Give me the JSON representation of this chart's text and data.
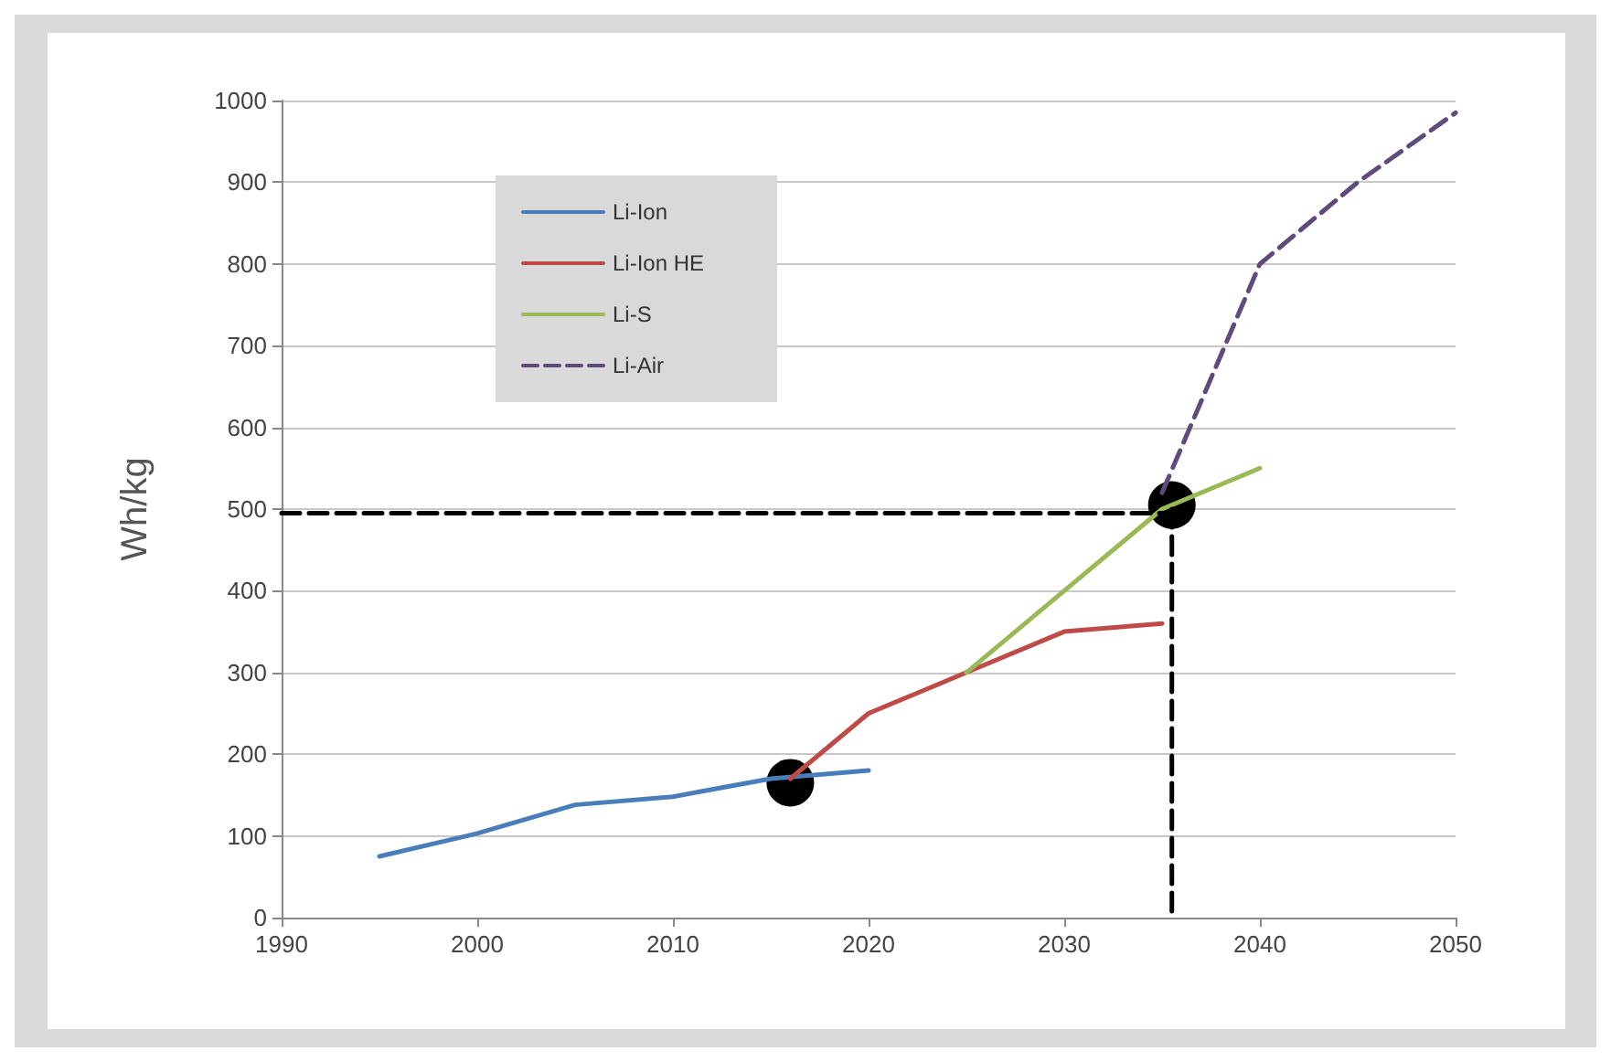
{
  "chart_data": {
    "type": "line",
    "ylabel": "Wh/kg",
    "xlim": [
      1990,
      2050
    ],
    "ylim": [
      0,
      1000
    ],
    "xticks": [
      1990,
      2000,
      2010,
      2020,
      2030,
      2040,
      2050
    ],
    "yticks": [
      0,
      100,
      200,
      300,
      400,
      500,
      600,
      700,
      800,
      900,
      1000
    ],
    "grid": "y",
    "legend": "top left",
    "marker": "none",
    "series": [
      {
        "name": "Li-Ion",
        "color": "#4a7ebb",
        "x": [
          1995,
          2000,
          2005,
          2010,
          2015,
          2020
        ],
        "values": [
          75,
          103,
          138,
          148,
          170,
          180
        ]
      },
      {
        "name": "Li-Ion HE",
        "color": "#be4b48",
        "x": [
          2016,
          2020,
          2025,
          2030,
          2035
        ],
        "values": [
          170,
          250,
          300,
          350,
          360
        ]
      },
      {
        "name": "Li-S",
        "color": "#98b954",
        "x": [
          2025,
          2030,
          2035,
          2040
        ],
        "values": [
          300,
          400,
          500,
          550
        ]
      },
      {
        "name": "Li-Air",
        "color": "#604a7b",
        "line_style": "dashed",
        "x": [
          2035,
          2040,
          2045,
          2050
        ],
        "values": [
          520,
          800,
          900,
          985
        ]
      },
      {
        "color": "#000000",
        "line_style": "dashed",
        "x": [
          1990,
          2035.5
        ],
        "values": [
          495,
          495
        ]
      },
      {
        "color": "#000000",
        "line_style": "dashed",
        "x": [
          2035.5,
          2035.5
        ],
        "values": [
          500,
          0
        ]
      },
      {
        "type": "scatter",
        "color": "#000000",
        "marker": "circle",
        "x": [
          2016,
          2035.5
        ],
        "values": [
          165,
          505
        ]
      }
    ]
  }
}
